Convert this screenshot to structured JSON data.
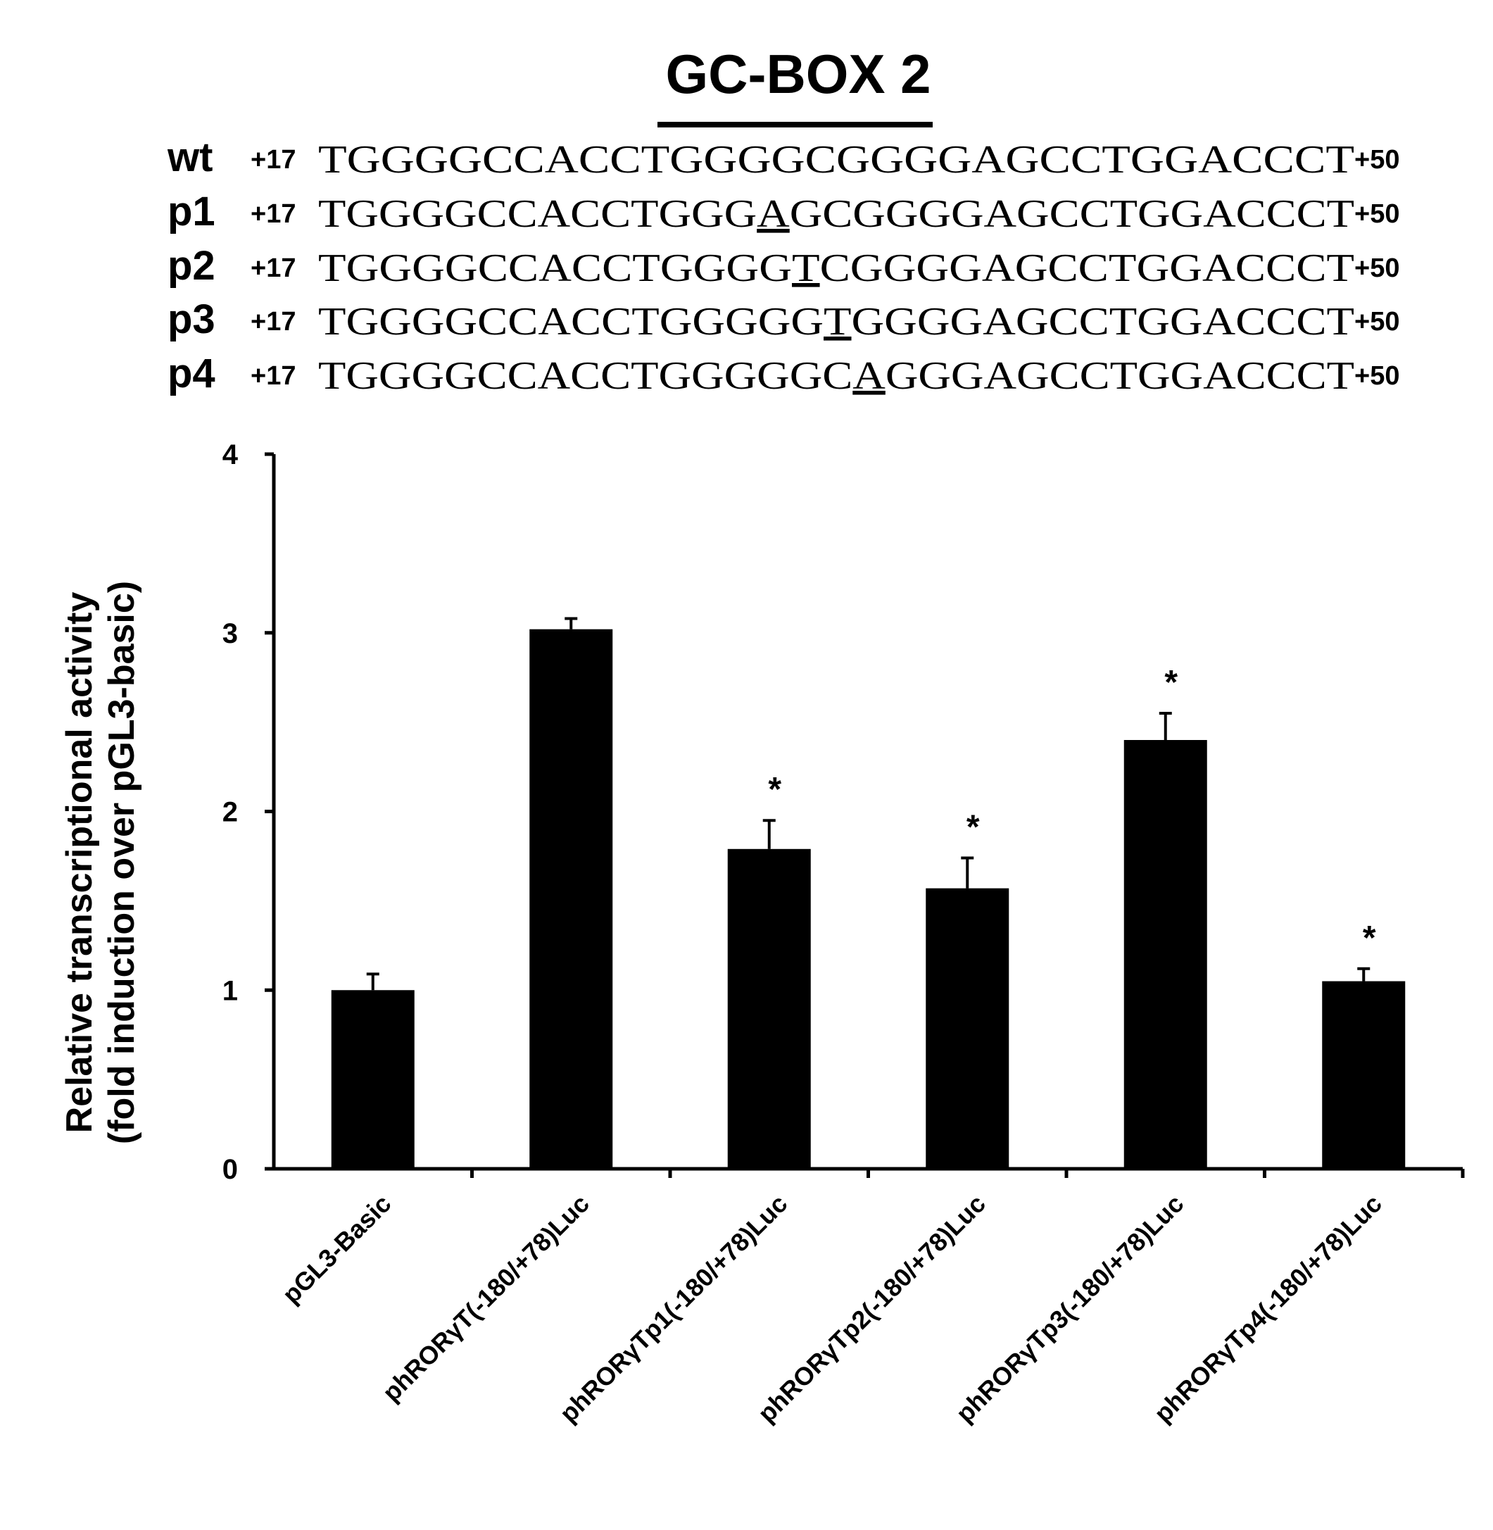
{
  "figure": {
    "title": "GC-BOX 2",
    "sequence_start": "+17",
    "sequence_end": "+50",
    "sequences": [
      {
        "label": "wt",
        "seq": "TGGGGCCACCTGGGGCGGGGAGCCTGGACCCT",
        "mutation_index": null
      },
      {
        "label": "p1",
        "seq": "TGGGGCCACCTGGGAGCGGGGAGCCTGGACCCT",
        "mutation_index": 14
      },
      {
        "label": "p2",
        "seq": "TGGGGCCACCTGGGGTCGGGGAGCCTGGACCCT",
        "mutation_index": 15
      },
      {
        "label": "p3",
        "seq": "TGGGGCCACCTGGGGGTGGGGAGCCTGGACCCT",
        "mutation_index": 16
      },
      {
        "label": "p4",
        "seq": "TGGGGCCACCTGGGGGCAGGGAGCCTGGACCCT",
        "mutation_index": 17
      }
    ]
  },
  "chart_data": {
    "type": "bar",
    "title": "",
    "ylabel": [
      "Relative transcriptional activity",
      "(fold induction over pGL3-basic)"
    ],
    "xlabel": "",
    "ylim": [
      0,
      4
    ],
    "yticks": [
      0,
      1,
      2,
      3,
      4
    ],
    "categories": [
      "pGL3-Basic",
      "phRORγT(-180/+78)Luc",
      "phRORγTp1(-180/+78)Luc",
      "phRORγTp2(-180/+78)Luc",
      "phRORγTp3(-180/+78)Luc",
      "phRORγTp4(-180/+78)Luc"
    ],
    "values": [
      1.0,
      3.02,
      1.79,
      1.57,
      2.4,
      1.05
    ],
    "errors": [
      0.09,
      0.06,
      0.16,
      0.17,
      0.15,
      0.07
    ],
    "significance": [
      "",
      "",
      "*",
      "*",
      "*",
      "*"
    ],
    "bar_color": "#000000",
    "grid": false,
    "legend": "none"
  }
}
